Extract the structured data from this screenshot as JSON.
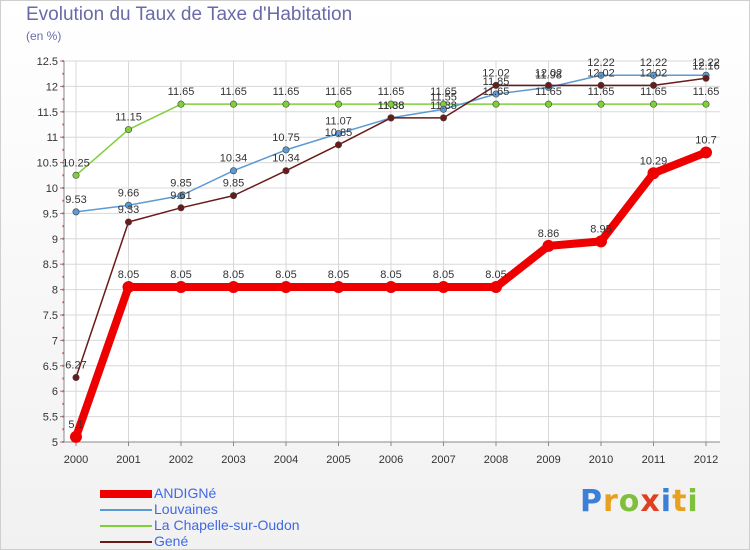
{
  "chart_data": {
    "type": "line",
    "title": "Evolution du Taux de Taxe d'Habitation",
    "subtitle": "(en %)",
    "x": [
      "2000",
      "2001",
      "2002",
      "2003",
      "2004",
      "2005",
      "2006",
      "2007",
      "2008",
      "2009",
      "2010",
      "2011",
      "2012"
    ],
    "ylim": [
      5,
      12.5
    ],
    "yticks": [
      "5",
      "5.5",
      "6",
      "6.5",
      "7",
      "7.5",
      "8",
      "8.5",
      "9",
      "9.5",
      "10",
      "10.5",
      "11",
      "11.5",
      "12",
      "12.5"
    ],
    "grid": true,
    "legend_position": "bottom-left",
    "series": [
      {
        "name": "ANDIGNé",
        "color": "#ee0000",
        "values": [
          5.1,
          8.05,
          8.05,
          8.05,
          8.05,
          8.05,
          8.05,
          8.05,
          8.05,
          8.86,
          8.95,
          10.29,
          10.7
        ],
        "labels": [
          "5.1",
          "8.05",
          "8.05",
          "8.05",
          "8.05",
          "8.05",
          "8.05",
          "8.05",
          "8.05",
          "8.86",
          "8.95",
          "10.29",
          "10.7"
        ]
      },
      {
        "name": "Louvaines",
        "color": "#5b9bd5",
        "values": [
          9.53,
          9.66,
          9.85,
          10.34,
          10.75,
          11.07,
          11.38,
          11.55,
          11.85,
          11.98,
          12.22,
          12.22,
          12.22
        ],
        "labels": [
          "9.53",
          "9.66",
          "9.85",
          "10.34",
          "10.75",
          "11.07",
          "11.38",
          "11.55",
          "11.85",
          "11.98",
          "12.22",
          "12.22",
          "12.22"
        ]
      },
      {
        "name": "La Chapelle-sur-Oudon",
        "color": "#7fcf3a",
        "values": [
          10.25,
          11.15,
          11.65,
          11.65,
          11.65,
          11.65,
          11.65,
          11.65,
          11.65,
          11.65,
          11.65,
          11.65,
          11.65
        ],
        "labels": [
          "10.25",
          "11.15",
          "11.65",
          "11.65",
          "11.65",
          "11.65",
          "11.65",
          "11.65",
          "11.65",
          "11.65",
          "11.65",
          "11.65",
          "11.65"
        ]
      },
      {
        "name": "Gené",
        "color": "#6b1a1a",
        "values": [
          6.27,
          9.33,
          9.61,
          9.85,
          10.34,
          10.85,
          11.38,
          11.38,
          12.02,
          12.02,
          12.02,
          12.02,
          12.16
        ],
        "labels": [
          "6.27",
          "9.33",
          "9.61",
          "9.85",
          "10.34",
          "10.85",
          "11.38",
          "11.38",
          "12.02",
          "12.02",
          "12.02",
          "12.02",
          "12.16"
        ]
      }
    ]
  },
  "legend": {
    "items": [
      {
        "label": "ANDIGNé",
        "color": "#ee0000",
        "width": 8
      },
      {
        "label": "Louvaines",
        "color": "#5b9bd5",
        "width": 2
      },
      {
        "label": "La Chapelle-sur-Oudon",
        "color": "#7fcf3a",
        "width": 2
      },
      {
        "label": "Gené",
        "color": "#6b1a1a",
        "width": 2
      }
    ]
  },
  "logo": {
    "text": "Proxiti",
    "colors": [
      "#3a7fd8",
      "#e8a020",
      "#7fbf3a",
      "#e04020",
      "#3a7fd8",
      "#e8a020",
      "#7fbf3a"
    ]
  }
}
